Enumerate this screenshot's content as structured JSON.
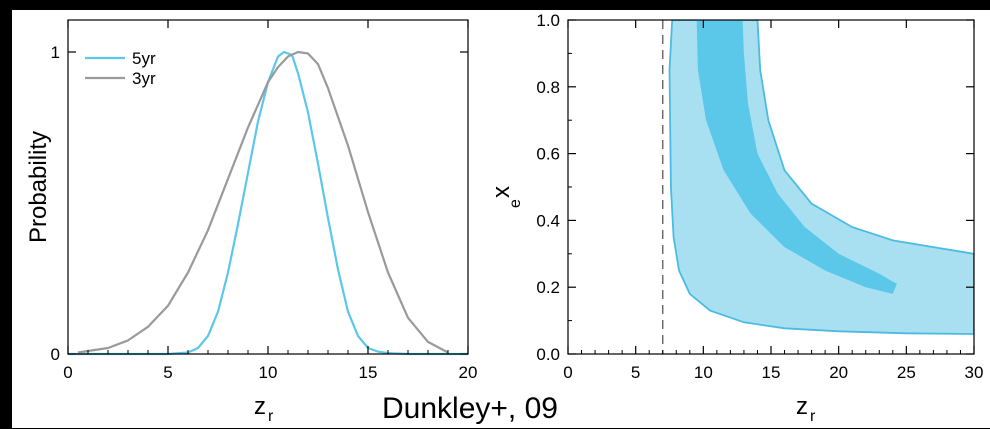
{
  "caption": "Dunkley+, 09",
  "colors": {
    "five_yr": "#5bc8ea",
    "three_yr": "#9a9a9a",
    "contour_outer": "#a8e0f2",
    "contour_inner": "#5bc8ea",
    "contour_line": "#4bbbe2",
    "dashed_line": "#666666",
    "background": "#000000",
    "panel": "#ffffff"
  },
  "chart_data": [
    {
      "type": "line",
      "xlabel": "z",
      "xlabel_sub": "r",
      "ylabel": "Probability",
      "xlim": [
        0,
        20
      ],
      "ylim": [
        0,
        1.05
      ],
      "xticks": [
        0,
        5,
        10,
        15,
        20
      ],
      "yticks": [
        0,
        1
      ],
      "legend": "top-left",
      "series": [
        {
          "name": "5yr",
          "color": "#5bc8ea",
          "x": [
            0,
            2,
            4,
            5,
            6,
            6.5,
            7,
            7.5,
            8,
            8.5,
            9,
            9.5,
            10,
            10.5,
            10.8,
            11.2,
            11.5,
            12,
            12.5,
            13,
            13.5,
            14,
            14.5,
            15,
            15.5,
            16,
            17,
            18,
            20
          ],
          "y": [
            0,
            0,
            0,
            0,
            0.005,
            0.02,
            0.06,
            0.14,
            0.27,
            0.43,
            0.6,
            0.77,
            0.9,
            0.985,
            1.0,
            0.99,
            0.93,
            0.8,
            0.63,
            0.45,
            0.28,
            0.14,
            0.06,
            0.02,
            0.008,
            0.003,
            0,
            0,
            0
          ]
        },
        {
          "name": "3yr",
          "color": "#9a9a9a",
          "x": [
            0.5,
            1,
            2,
            3,
            4,
            5,
            6,
            7,
            8,
            9,
            10,
            10.5,
            11,
            11.5,
            12,
            12.5,
            13,
            14,
            15,
            16,
            17,
            18,
            19
          ],
          "y": [
            0.005,
            0.01,
            0.02,
            0.045,
            0.09,
            0.16,
            0.27,
            0.41,
            0.58,
            0.75,
            0.9,
            0.95,
            0.985,
            1.0,
            0.995,
            0.96,
            0.88,
            0.69,
            0.47,
            0.27,
            0.12,
            0.04,
            0.005
          ]
        }
      ]
    },
    {
      "type": "contour",
      "xlabel": "z",
      "xlabel_sub": "r",
      "ylabel": "x",
      "ylabel_sub": "e",
      "xlim": [
        0,
        30
      ],
      "ylim": [
        0,
        1
      ],
      "xticks": [
        0,
        5,
        10,
        15,
        20,
        25,
        30
      ],
      "yticks": [
        0.0,
        0.2,
        0.4,
        0.6,
        0.8,
        1.0
      ],
      "ytick_labels": [
        "0.0",
        "0.2",
        "0.4",
        "0.6",
        "0.8",
        "1.0"
      ],
      "vline_x": 7,
      "outer_region": [
        [
          7.7,
          1.0
        ],
        [
          7.5,
          0.85
        ],
        [
          7.6,
          0.5
        ],
        [
          7.8,
          0.35
        ],
        [
          8.2,
          0.25
        ],
        [
          9.0,
          0.18
        ],
        [
          10.5,
          0.13
        ],
        [
          13,
          0.095
        ],
        [
          16,
          0.077
        ],
        [
          20,
          0.068
        ],
        [
          25,
          0.062
        ],
        [
          30,
          0.06
        ],
        [
          30,
          0.3
        ],
        [
          27,
          0.32
        ],
        [
          24,
          0.34
        ],
        [
          21,
          0.38
        ],
        [
          18,
          0.45
        ],
        [
          16,
          0.55
        ],
        [
          14.8,
          0.7
        ],
        [
          14.2,
          0.85
        ],
        [
          14.0,
          1.0
        ]
      ],
      "inner_region": [
        [
          9.5,
          1.0
        ],
        [
          9.6,
          0.85
        ],
        [
          10.2,
          0.7
        ],
        [
          11.5,
          0.55
        ],
        [
          13.5,
          0.42
        ],
        [
          16,
          0.32
        ],
        [
          19,
          0.25
        ],
        [
          22,
          0.2
        ],
        [
          24,
          0.18
        ],
        [
          24.3,
          0.21
        ],
        [
          23,
          0.24
        ],
        [
          20,
          0.3
        ],
        [
          17.5,
          0.38
        ],
        [
          15.5,
          0.48
        ],
        [
          14,
          0.6
        ],
        [
          13.3,
          0.75
        ],
        [
          13.0,
          0.9
        ],
        [
          12.9,
          1.0
        ]
      ]
    }
  ]
}
